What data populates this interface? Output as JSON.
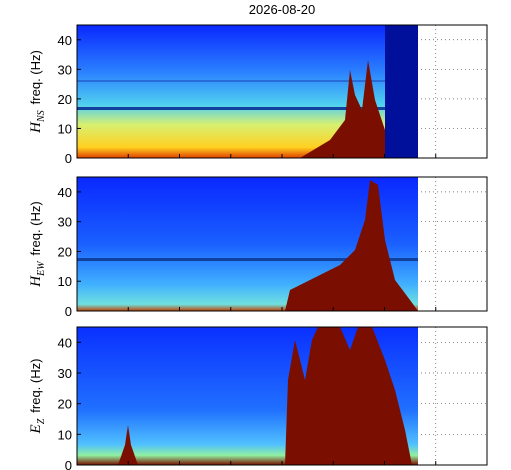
{
  "chart_data": [
    {
      "type": "spectrogram",
      "title": "2026-08-20",
      "ylabel_symbol": "H",
      "ylabel_subscript": "NS",
      "ylabel": "freq. (Hz)",
      "ylim": [
        0,
        45
      ],
      "yticks": [
        0,
        10,
        20,
        30,
        40
      ],
      "grid": true,
      "colormap": "jet"
    },
    {
      "type": "spectrogram",
      "ylabel_symbol": "H",
      "ylabel_subscript": "EW",
      "ylabel": "freq. (Hz)",
      "ylim": [
        0,
        45
      ],
      "yticks": [
        0,
        10,
        20,
        30,
        40
      ],
      "grid": true,
      "colormap": "jet"
    },
    {
      "type": "spectrogram",
      "ylabel_symbol": "E",
      "ylabel_subscript": "Z",
      "ylabel": "freq. (Hz)",
      "ylim": [
        0,
        45
      ],
      "yticks": [
        0,
        10,
        20,
        30,
        40
      ],
      "grid": true,
      "colormap": "jet"
    }
  ]
}
